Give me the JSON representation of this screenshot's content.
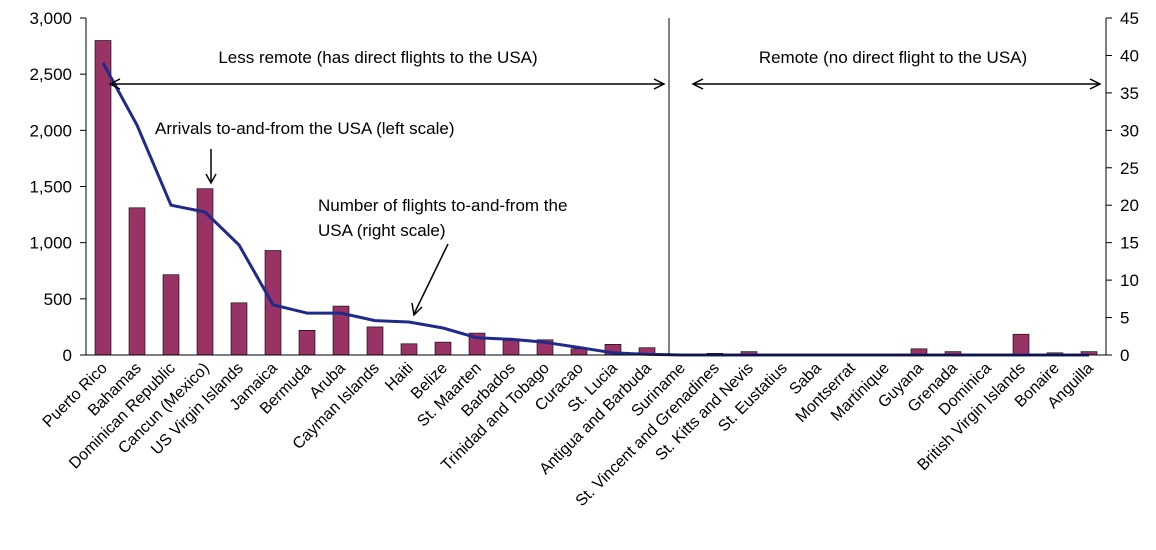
{
  "chart_data": {
    "type": "bar",
    "categories": [
      "Puerto Rico",
      "Bahamas",
      "Dominican Republic",
      "Cancun (Mexico)",
      "US Virgin Islands",
      "Jamaica",
      "Bermuda",
      "Aruba",
      "Cayman Islands",
      "Haiti",
      "Belize",
      "St. Maarten",
      "Barbados",
      "Trinidad and Tobago",
      "Curacao",
      "St. Lucia",
      "Antigua and Barbuda",
      "Suriname",
      "St. Vincent and Grenadines",
      "St. Kitts and Nevis",
      "St. Eustatius",
      "Saba",
      "Montserrat",
      "Martinique",
      "Guyana",
      "Grenada",
      "Dominica",
      "British Virgin Islands",
      "Bonaire",
      "Anguilla"
    ],
    "series": [
      {
        "name": "Arrivals to-and-from the USA (left scale)",
        "type": "bar",
        "axis": "left",
        "color": "#993366",
        "values": [
          2800,
          1310,
          715,
          1480,
          465,
          930,
          220,
          435,
          250,
          100,
          115,
          195,
          130,
          135,
          55,
          95,
          65,
          0,
          15,
          30,
          0,
          0,
          0,
          0,
          55,
          30,
          0,
          185,
          20,
          30
        ]
      },
      {
        "name": "Number of flights to-and-from the USA (right scale)",
        "type": "line",
        "axis": "right",
        "color": "#1f2a8a",
        "values": [
          39,
          30.7,
          20,
          19.1,
          14.7,
          6.7,
          5.6,
          5.6,
          4.6,
          4.4,
          3.6,
          2.3,
          2.1,
          1.7,
          1,
          0.3,
          0.1,
          0,
          0,
          0,
          0,
          0,
          0,
          0,
          0,
          0,
          0,
          0,
          0,
          0
        ]
      }
    ],
    "left_axis": {
      "min": 0,
      "max": 3000,
      "ticks": [
        "0",
        "500",
        "1,000",
        "1,500",
        "2,000",
        "2,500",
        "3,000"
      ]
    },
    "right_axis": {
      "min": 0,
      "max": 45,
      "ticks": [
        "0",
        "5",
        "10",
        "15",
        "20",
        "25",
        "30",
        "35",
        "40",
        "45"
      ]
    },
    "divider_after_category": "Suriname",
    "annotations": {
      "less_remote": "Less remote (has direct flights to the USA)",
      "remote": "Remote (no direct flight to the USA)",
      "arrivals_label": "Arrivals to-and-from the USA (left scale)",
      "flights_label_line1": "Number of flights to-and-from the",
      "flights_label_line2": "USA (right scale)"
    },
    "grid": false,
    "legend": "none"
  }
}
